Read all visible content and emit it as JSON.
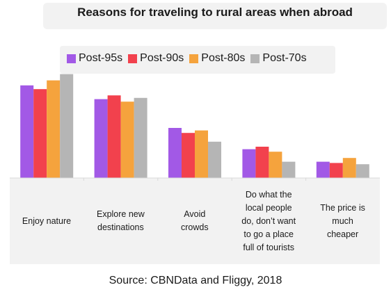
{
  "chart_data": {
    "type": "bar",
    "title": "Reasons for traveling to rural areas when abroad",
    "categories": [
      "Enjoy nature",
      "Explore new destinations",
      "Avoid crowds",
      "Do what the local people do, don’t want to go a place full of tourists",
      "The price is much cheaper"
    ],
    "category_lines": [
      [
        "Enjoy nature"
      ],
      [
        "Explore new",
        "destinations"
      ],
      [
        "Avoid",
        "crowds"
      ],
      [
        "Do what the",
        "local people",
        "do, don’t want",
        "to go a place",
        "full of tourists"
      ],
      [
        "The price is",
        "much",
        "cheaper"
      ]
    ],
    "series": [
      {
        "name": "Post-95s",
        "color": "#a259e6",
        "values": [
          74,
          63,
          40,
          23,
          13
        ]
      },
      {
        "name": "Post-90s",
        "color": "#f2414d",
        "values": [
          71,
          66,
          36,
          25,
          12
        ]
      },
      {
        "name": "Post-80s",
        "color": "#f5a33d",
        "values": [
          78,
          61,
          38,
          21,
          16
        ]
      },
      {
        "name": "Post-70s",
        "color": "#b5b5b5",
        "values": [
          83,
          64,
          29,
          13,
          11
        ]
      }
    ],
    "ylim": [
      0,
      100
    ],
    "grid": false,
    "legend_position": "top",
    "source": "Source: CBNData and Fliggy, 2018"
  }
}
